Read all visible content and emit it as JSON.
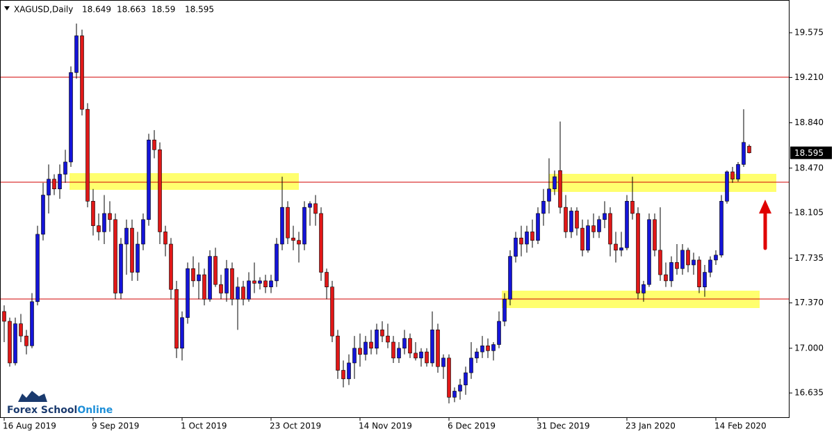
{
  "chart_data": {
    "type": "candlestick",
    "symbol": "XAGUSD,Daily",
    "up_color": "#1414d8",
    "down_color": "#e01818",
    "grid": false,
    "ylim": [
      16.437,
      19.842
    ],
    "yticks": [
      {
        "value": 16.635,
        "label": "16.635"
      },
      {
        "value": 17,
        "label": "17.000"
      },
      {
        "value": 17.37,
        "label": "17.370"
      },
      {
        "value": 17.735,
        "label": "17.735"
      },
      {
        "value": 18.105,
        "label": "18.105"
      },
      {
        "value": 18.47,
        "label": "18.470"
      },
      {
        "value": 18.84,
        "label": "18.840"
      },
      {
        "value": 19.21,
        "label": "19.210"
      },
      {
        "value": 19.575,
        "label": "19.575"
      }
    ],
    "categories": [
      "16 Aug 2019",
      null,
      null,
      null,
      null,
      null,
      null,
      null,
      null,
      null,
      null,
      null,
      null,
      null,
      null,
      null,
      "9 Sep 2019",
      null,
      null,
      null,
      null,
      null,
      null,
      null,
      null,
      null,
      null,
      null,
      null,
      null,
      null,
      null,
      "1 Oct 2019",
      null,
      null,
      null,
      null,
      null,
      null,
      null,
      null,
      null,
      null,
      null,
      null,
      null,
      null,
      null,
      "23 Oct 2019",
      null,
      null,
      null,
      null,
      null,
      null,
      null,
      null,
      null,
      null,
      null,
      null,
      null,
      null,
      null,
      "14 Nov 2019",
      null,
      null,
      null,
      null,
      null,
      null,
      null,
      null,
      null,
      null,
      null,
      null,
      null,
      null,
      null,
      "6 Dec 2019",
      null,
      null,
      null,
      null,
      null,
      null,
      null,
      null,
      null,
      null,
      null,
      null,
      null,
      null,
      null,
      "31 Dec 2019",
      null,
      null,
      null,
      null,
      null,
      null,
      null,
      null,
      null,
      null,
      null,
      null,
      null,
      null,
      null,
      "23 Jan 2020",
      null,
      null,
      null,
      null,
      null,
      null,
      null,
      null,
      null,
      null,
      null,
      null,
      null,
      null,
      null,
      "14 Feb 2020",
      null,
      null,
      null,
      null,
      null,
      null
    ],
    "candles": [
      [
        17.3,
        17.35,
        17.05,
        17.22
      ],
      [
        17.22,
        17.25,
        16.85,
        16.88
      ],
      [
        16.88,
        17.25,
        16.86,
        17.2
      ],
      [
        17.2,
        17.28,
        17.05,
        17.1
      ],
      [
        17.1,
        17.15,
        16.95,
        17.02
      ],
      [
        17.02,
        17.45,
        17.0,
        17.38
      ],
      [
        17.38,
        18.0,
        17.35,
        17.93
      ],
      [
        17.93,
        18.35,
        17.88,
        18.25
      ],
      [
        18.25,
        18.5,
        18.1,
        18.38
      ],
      [
        18.38,
        18.42,
        18.25,
        18.3
      ],
      [
        18.3,
        18.5,
        18.22,
        18.42
      ],
      [
        18.42,
        18.62,
        18.35,
        18.52
      ],
      [
        18.52,
        19.3,
        18.48,
        19.25
      ],
      [
        19.25,
        19.65,
        19.2,
        19.55
      ],
      [
        19.55,
        19.6,
        18.9,
        18.95
      ],
      [
        18.95,
        19.0,
        18.15,
        18.2
      ],
      [
        18.2,
        18.3,
        17.92,
        18.0
      ],
      [
        18.0,
        18.1,
        17.88,
        17.95
      ],
      [
        17.95,
        18.25,
        17.85,
        18.1
      ],
      [
        18.1,
        18.2,
        17.95,
        18.05
      ],
      [
        18.05,
        18.1,
        17.4,
        17.45
      ],
      [
        17.45,
        17.9,
        17.4,
        17.85
      ],
      [
        17.85,
        18.05,
        17.6,
        17.98
      ],
      [
        17.98,
        18.05,
        17.55,
        17.62
      ],
      [
        17.62,
        17.95,
        17.55,
        17.85
      ],
      [
        17.85,
        18.1,
        17.8,
        18.05
      ],
      [
        18.05,
        18.75,
        18.0,
        18.7
      ],
      [
        18.7,
        18.78,
        18.55,
        18.62
      ],
      [
        18.62,
        18.68,
        17.85,
        17.95
      ],
      [
        17.95,
        18.0,
        17.75,
        17.85
      ],
      [
        17.85,
        17.9,
        17.4,
        17.48
      ],
      [
        17.48,
        17.55,
        16.92,
        17.0
      ],
      [
        17.0,
        17.3,
        16.9,
        17.25
      ],
      [
        17.25,
        17.7,
        17.2,
        17.65
      ],
      [
        17.65,
        17.75,
        17.5,
        17.55
      ],
      [
        17.55,
        17.7,
        17.4,
        17.6
      ],
      [
        17.6,
        17.65,
        17.35,
        17.4
      ],
      [
        17.4,
        17.8,
        17.38,
        17.75
      ],
      [
        17.75,
        17.82,
        17.5,
        17.52
      ],
      [
        17.52,
        17.6,
        17.4,
        17.45
      ],
      [
        17.45,
        17.72,
        17.38,
        17.65
      ],
      [
        17.65,
        17.7,
        17.35,
        17.4
      ],
      [
        17.4,
        17.58,
        17.15,
        17.5
      ],
      [
        17.5,
        17.55,
        17.35,
        17.4
      ],
      [
        17.4,
        17.62,
        17.38,
        17.55
      ],
      [
        17.55,
        17.7,
        17.45,
        17.53
      ],
      [
        17.53,
        17.58,
        17.48,
        17.55
      ],
      [
        17.55,
        17.6,
        17.45,
        17.5
      ],
      [
        17.5,
        17.6,
        17.45,
        17.55
      ],
      [
        17.55,
        17.9,
        17.5,
        17.85
      ],
      [
        17.85,
        18.4,
        17.8,
        18.15
      ],
      [
        18.15,
        18.2,
        17.85,
        17.9
      ],
      [
        17.9,
        18.0,
        17.8,
        17.88
      ],
      [
        17.88,
        17.95,
        17.7,
        17.85
      ],
      [
        17.85,
        18.2,
        17.8,
        18.15
      ],
      [
        18.15,
        18.2,
        18.0,
        18.18
      ],
      [
        18.18,
        18.25,
        18.0,
        18.1
      ],
      [
        18.1,
        18.15,
        17.55,
        17.62
      ],
      [
        17.62,
        17.65,
        17.4,
        17.5
      ],
      [
        17.5,
        17.55,
        17.05,
        17.1
      ],
      [
        17.1,
        17.15,
        16.75,
        16.82
      ],
      [
        16.82,
        16.9,
        16.68,
        16.75
      ],
      [
        16.75,
        16.95,
        16.7,
        16.88
      ],
      [
        16.88,
        17.1,
        16.75,
        17.0
      ],
      [
        17.0,
        17.12,
        16.85,
        16.95
      ],
      [
        16.95,
        17.1,
        16.9,
        17.05
      ],
      [
        17.05,
        17.15,
        16.95,
        17.0
      ],
      [
        17.0,
        17.2,
        16.95,
        17.15
      ],
      [
        17.15,
        17.22,
        17.05,
        17.1
      ],
      [
        17.1,
        17.2,
        17.0,
        17.05
      ],
      [
        17.05,
        17.1,
        16.88,
        16.92
      ],
      [
        16.92,
        17.05,
        16.88,
        17.0
      ],
      [
        17.0,
        17.15,
        16.95,
        17.08
      ],
      [
        17.08,
        17.12,
        16.92,
        16.96
      ],
      [
        16.96,
        17.05,
        16.9,
        16.92
      ],
      [
        16.92,
        17.0,
        16.85,
        16.97
      ],
      [
        16.97,
        17.0,
        16.85,
        16.88
      ],
      [
        16.88,
        17.3,
        16.85,
        17.15
      ],
      [
        17.15,
        17.2,
        16.8,
        16.85
      ],
      [
        16.85,
        16.95,
        16.75,
        16.92
      ],
      [
        16.92,
        16.95,
        16.55,
        16.6
      ],
      [
        16.6,
        16.68,
        16.56,
        16.65
      ],
      [
        16.65,
        16.75,
        16.58,
        16.7
      ],
      [
        16.7,
        16.85,
        16.62,
        16.8
      ],
      [
        16.8,
        17.05,
        16.75,
        16.92
      ],
      [
        16.92,
        17.0,
        16.88,
        16.97
      ],
      [
        16.97,
        17.1,
        16.92,
        17.02
      ],
      [
        17.02,
        17.08,
        16.92,
        16.98
      ],
      [
        16.98,
        17.05,
        16.9,
        17.03
      ],
      [
        17.03,
        17.3,
        17.0,
        17.22
      ],
      [
        17.22,
        17.45,
        17.18,
        17.4
      ],
      [
        17.4,
        17.8,
        17.35,
        17.75
      ],
      [
        17.75,
        17.95,
        17.7,
        17.9
      ],
      [
        17.9,
        18.0,
        17.75,
        17.85
      ],
      [
        17.85,
        18.0,
        17.78,
        17.95
      ],
      [
        17.95,
        18.05,
        17.82,
        17.88
      ],
      [
        17.88,
        18.15,
        17.85,
        18.1
      ],
      [
        18.1,
        18.3,
        18.0,
        18.2
      ],
      [
        18.2,
        18.55,
        18.1,
        18.3
      ],
      [
        18.3,
        18.45,
        18.25,
        18.4
      ],
      [
        18.45,
        18.85,
        18.1,
        18.15
      ],
      [
        18.15,
        18.25,
        17.9,
        17.95
      ],
      [
        17.95,
        18.15,
        17.9,
        18.12
      ],
      [
        18.12,
        18.15,
        17.92,
        17.98
      ],
      [
        17.98,
        18.05,
        17.75,
        17.8
      ],
      [
        17.8,
        18.05,
        17.78,
        18.0
      ],
      [
        18.0,
        18.1,
        17.9,
        17.95
      ],
      [
        17.95,
        18.08,
        17.9,
        18.05
      ],
      [
        18.05,
        18.2,
        17.98,
        18.1
      ],
      [
        18.1,
        18.15,
        17.75,
        17.85
      ],
      [
        17.85,
        17.95,
        17.7,
        17.8
      ],
      [
        17.8,
        17.95,
        17.75,
        17.82
      ],
      [
        17.82,
        18.25,
        17.8,
        18.2
      ],
      [
        18.2,
        18.4,
        18.05,
        18.1
      ],
      [
        18.1,
        18.15,
        17.4,
        17.45
      ],
      [
        17.45,
        17.55,
        17.38,
        17.52
      ],
      [
        17.52,
        18.1,
        17.5,
        18.05
      ],
      [
        18.05,
        18.1,
        17.75,
        17.8
      ],
      [
        17.8,
        18.15,
        17.55,
        17.6
      ],
      [
        17.6,
        17.7,
        17.5,
        17.55
      ],
      [
        17.55,
        17.75,
        17.5,
        17.7
      ],
      [
        17.7,
        17.85,
        17.6,
        17.65
      ],
      [
        17.65,
        17.85,
        17.6,
        17.8
      ],
      [
        17.8,
        17.82,
        17.62,
        17.68
      ],
      [
        17.68,
        17.78,
        17.6,
        17.72
      ],
      [
        17.72,
        17.75,
        17.45,
        17.5
      ],
      [
        17.5,
        17.68,
        17.42,
        17.62
      ],
      [
        17.62,
        17.75,
        17.58,
        17.72
      ],
      [
        17.72,
        17.8,
        17.68,
        17.76
      ],
      [
        17.76,
        18.25,
        17.74,
        18.2
      ],
      [
        18.2,
        18.45,
        18.18,
        18.44
      ],
      [
        18.44,
        18.48,
        18.35,
        18.38
      ],
      [
        18.38,
        18.52,
        18.36,
        18.5
      ],
      [
        18.5,
        18.95,
        18.48,
        18.68
      ],
      [
        18.649,
        18.663,
        18.59,
        18.595
      ]
    ],
    "logo": {
      "part1": "Forex School",
      "part2": "Online"
    }
  }
}
